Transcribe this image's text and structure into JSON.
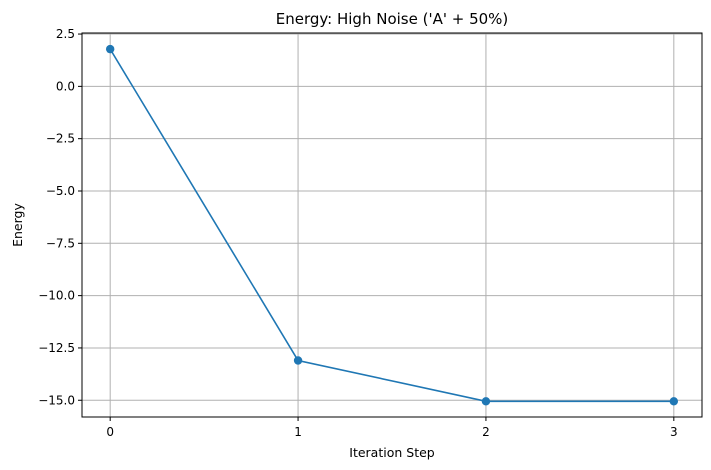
{
  "chart_data": {
    "type": "line",
    "title": "Energy: High Noise ('A' + 50%)",
    "xlabel": "Iteration Step",
    "ylabel": "Energy",
    "x": [
      0,
      1,
      2,
      3
    ],
    "series": [
      {
        "values": [
          1.78,
          -13.1,
          -15.05,
          -15.05
        ],
        "color": "#1f77b4",
        "marker": "circle"
      }
    ],
    "xticks": [
      0,
      1,
      2,
      3
    ],
    "xtick_labels": [
      "0",
      "1",
      "2",
      "3"
    ],
    "yticks": [
      2.5,
      0.0,
      -2.5,
      -5.0,
      -7.5,
      -10.0,
      -12.5,
      -15.0
    ],
    "ytick_labels": [
      "2.5",
      "0.0",
      "−2.5",
      "−5.0",
      "−7.5",
      "−10.0",
      "−12.5",
      "−15.0"
    ],
    "xlim": [
      -0.15,
      3.15
    ],
    "ylim": [
      -15.8,
      2.55
    ],
    "grid": true,
    "legend": false
  }
}
